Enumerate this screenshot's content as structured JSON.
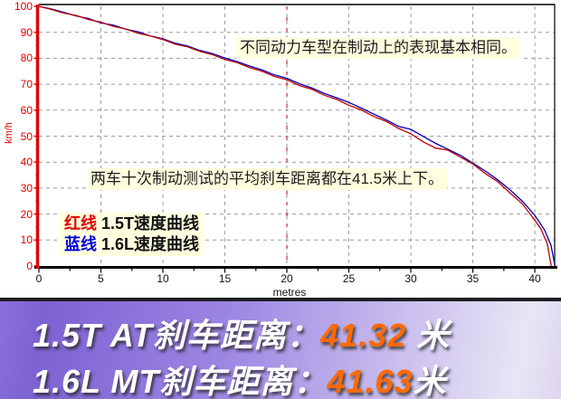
{
  "chart_data": {
    "type": "line",
    "title": "",
    "xlabel": "metres",
    "ylabel": "km/h",
    "xlim": [
      0,
      41.6
    ],
    "ylim": [
      0,
      100
    ],
    "grid": true,
    "x_major_ticks": [
      0,
      5,
      10,
      15,
      20,
      25,
      30,
      35,
      40
    ],
    "y_major_ticks": [
      0,
      10,
      20,
      30,
      40,
      50,
      60,
      70,
      80,
      90,
      100
    ],
    "x_minor_step": 2.5,
    "y_minor_step": 5,
    "marker_line_x": 20,
    "grid_color": "#9a9a9a",
    "marker_line_color": "#d00000",
    "series": [
      {
        "name": "1.6L速度曲线",
        "color": "#0000bb",
        "stop_distance_m": 41.63,
        "points": [
          [
            0,
            100
          ],
          [
            1,
            99.0
          ],
          [
            2,
            97.7
          ],
          [
            3,
            96.3
          ],
          [
            4,
            95.3
          ],
          [
            5,
            93.6
          ],
          [
            6,
            92.8
          ],
          [
            7,
            91.2
          ],
          [
            8,
            90.2
          ],
          [
            9,
            88.6
          ],
          [
            10,
            87.5
          ],
          [
            11,
            85.8
          ],
          [
            12,
            84.7
          ],
          [
            13,
            83.0
          ],
          [
            14,
            81.8
          ],
          [
            15,
            80.1
          ],
          [
            16,
            78.7
          ],
          [
            17,
            77.0
          ],
          [
            18,
            75.5
          ],
          [
            19,
            73.6
          ],
          [
            20,
            72.3
          ],
          [
            21,
            70.2
          ],
          [
            22,
            68.6
          ],
          [
            23,
            66.5
          ],
          [
            24,
            64.8
          ],
          [
            25,
            63.0
          ],
          [
            26,
            60.8
          ],
          [
            27,
            58.5
          ],
          [
            28,
            56.3
          ],
          [
            29,
            53.8
          ],
          [
            30,
            52.6
          ],
          [
            31,
            49.9
          ],
          [
            32,
            47.2
          ],
          [
            33,
            44.9
          ],
          [
            34,
            42.6
          ],
          [
            35,
            39.6
          ],
          [
            36,
            36.6
          ],
          [
            37,
            33.2
          ],
          [
            38,
            29.3
          ],
          [
            39,
            24.9
          ],
          [
            40,
            19.5
          ],
          [
            40.8,
            13.8
          ],
          [
            41.3,
            8.0
          ],
          [
            41.63,
            0
          ]
        ]
      },
      {
        "name": "1.5T速度曲线",
        "color": "#c00000",
        "stop_distance_m": 41.32,
        "points": [
          [
            0,
            100
          ],
          [
            1,
            98.8
          ],
          [
            2,
            97.4
          ],
          [
            3,
            96.5
          ],
          [
            4,
            94.9
          ],
          [
            5,
            93.9
          ],
          [
            6,
            92.3
          ],
          [
            7,
            91.3
          ],
          [
            8,
            89.6
          ],
          [
            9,
            88.6
          ],
          [
            10,
            87.2
          ],
          [
            11,
            85.4
          ],
          [
            12,
            84.4
          ],
          [
            13,
            82.6
          ],
          [
            14,
            81.4
          ],
          [
            15,
            79.5
          ],
          [
            16,
            78.3
          ],
          [
            17,
            76.4
          ],
          [
            18,
            75.0
          ],
          [
            19,
            73.0
          ],
          [
            20,
            71.7
          ],
          [
            21,
            69.5
          ],
          [
            22,
            68.1
          ],
          [
            23,
            65.8
          ],
          [
            24,
            64.2
          ],
          [
            25,
            61.9
          ],
          [
            26,
            60.1
          ],
          [
            27,
            57.6
          ],
          [
            28,
            55.7
          ],
          [
            29,
            53.0
          ],
          [
            30,
            50.9
          ],
          [
            31,
            47.8
          ],
          [
            32,
            45.4
          ],
          [
            33,
            44.6
          ],
          [
            34,
            41.9
          ],
          [
            35,
            39.3
          ],
          [
            36,
            35.6
          ],
          [
            37,
            32.5
          ],
          [
            38,
            28.1
          ],
          [
            39,
            23.9
          ],
          [
            40,
            17.6
          ],
          [
            40.5,
            14.2
          ],
          [
            41.0,
            8.6
          ],
          [
            41.32,
            0
          ]
        ]
      }
    ]
  },
  "axes": {
    "y_title": "km/h",
    "x_title": "metres",
    "y_axis_color": "#e00000",
    "x_axis_color": "#000000"
  },
  "annotations": {
    "top": "不同动力车型在制动上的表现基本相同。",
    "middle": "两车十次制动测试的平均刹车距离都在41.5米上下。"
  },
  "legend": {
    "items": [
      {
        "swatch": "红线",
        "swatch_color": "#e00000",
        "label": "1.5T速度曲线"
      },
      {
        "swatch": "蓝线",
        "swatch_color": "#0000dd",
        "label": "1.6L速度曲线"
      }
    ]
  },
  "banner": {
    "rows": [
      {
        "label": "1.5T AT刹车距离：",
        "value": "41.32",
        "unit": " 米"
      },
      {
        "label": "1.6L MT刹车距离：",
        "value": "41.63",
        "unit": "米"
      }
    ]
  }
}
